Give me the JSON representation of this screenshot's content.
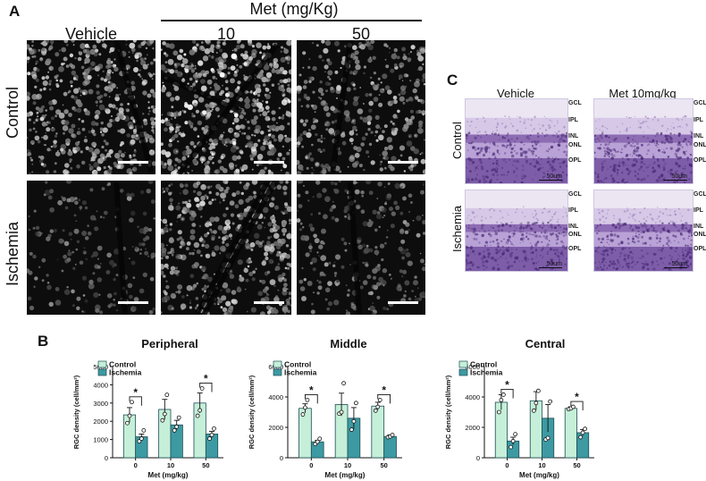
{
  "panel_a": {
    "letter": "A",
    "group_label": "Met (mg/Kg)",
    "columns": [
      "Vehicle",
      "10",
      "50"
    ],
    "rows": [
      "Control",
      "Ischemia"
    ]
  },
  "panel_c": {
    "letter": "C",
    "columns": [
      "Vehicle",
      "Met 10mg/kg"
    ],
    "rows": [
      "Control",
      "Ischemia"
    ],
    "layers": [
      "GCL",
      "IPL",
      "INL",
      "ONL",
      "OPL"
    ],
    "scale_bar": "50um"
  },
  "panel_b": {
    "letter": "B"
  },
  "colors": {
    "control": "#c5efd8",
    "ischemia": "#3d9aa2",
    "bar_edge": "#1d4d55"
  },
  "chart_data": [
    {
      "type": "bar",
      "title": "Peripheral",
      "categories": [
        "0",
        "10",
        "50"
      ],
      "xlabel": "Met (mg/kg)",
      "ylabel": "RGC density (cell/mm²)",
      "ylim": [
        0,
        5000
      ],
      "yticks": [
        "0",
        "1000",
        "2000",
        "3000",
        "4000",
        "5000"
      ],
      "legend": [
        "Control",
        "Ischemia"
      ],
      "legend_position": "top-left",
      "series": [
        {
          "name": "Control",
          "values": [
            2350,
            2650,
            3000
          ],
          "err": [
            400,
            550,
            550
          ],
          "points": [
            [
              1900,
              2300,
              3050
            ],
            [
              2050,
              2400,
              3450
            ],
            [
              2300,
              2600,
              3800
            ]
          ]
        },
        {
          "name": "Ischemia",
          "values": [
            1150,
            1800,
            1300
          ],
          "err": [
            150,
            250,
            150
          ],
          "points": [
            [
              900,
              1050,
              1500
            ],
            [
              1500,
              1700,
              2200
            ],
            [
              1050,
              1250,
              1600
            ]
          ]
        }
      ],
      "significance": [
        {
          "category": "0",
          "label": "*"
        },
        {
          "category": "50",
          "label": "*"
        }
      ]
    },
    {
      "type": "bar",
      "title": "Middle",
      "categories": [
        "0",
        "10",
        "50"
      ],
      "xlabel": "Met (mg/kg)",
      "ylabel": "RGC density (cell/mm²)",
      "ylim": [
        0,
        6000
      ],
      "yticks": [
        "0",
        "2000",
        "4000",
        "6000"
      ],
      "legend": [
        "Control",
        "Ischemia"
      ],
      "legend_position": "top-left",
      "series": [
        {
          "name": "Control",
          "values": [
            3250,
            3500,
            3400
          ],
          "err": [
            300,
            750,
            250
          ],
          "points": [
            [
              2850,
              3300,
              3800
            ],
            [
              2900,
              3000,
              4900
            ],
            [
              3100,
              3350,
              3800
            ]
          ]
        },
        {
          "name": "Ischemia",
          "values": [
            1050,
            2600,
            1400
          ],
          "err": [
            100,
            700,
            100
          ],
          "points": [
            [
              900,
              1050,
              1250
            ],
            [
              1850,
              2400,
              3600
            ],
            [
              1350,
              1400,
              1500
            ]
          ]
        }
      ],
      "significance": [
        {
          "category": "0",
          "label": "*"
        },
        {
          "category": "50",
          "label": "*"
        }
      ]
    },
    {
      "type": "bar",
      "title": "Central",
      "categories": [
        "0",
        "10",
        "50"
      ],
      "xlabel": "Met (mg/kg)",
      "ylabel": "RGC density (cell/mm²)",
      "ylim": [
        0,
        6000
      ],
      "yticks": [
        "0",
        "2000",
        "4000",
        "6000"
      ],
      "legend": [
        "Control",
        "Ischemia"
      ],
      "legend_position": "top-left",
      "series": [
        {
          "name": "Control",
          "values": [
            3650,
            3750,
            3250
          ],
          "err": [
            500,
            600,
            100
          ],
          "points": [
            [
              3000,
              3800,
              4150
            ],
            [
              3100,
              3600,
              4400
            ],
            [
              3200,
              3250,
              3350
            ]
          ]
        },
        {
          "name": "Ischemia",
          "values": [
            1100,
            2600,
            1650
          ],
          "err": [
            250,
            900,
            200
          ],
          "points": [
            [
              700,
              1100,
              1550
            ],
            [
              1200,
              1300,
              3700
            ],
            [
              1350,
              1650,
              1900
            ]
          ]
        }
      ],
      "significance": [
        {
          "category": "0",
          "label": "*"
        },
        {
          "category": "50",
          "label": "*"
        }
      ]
    }
  ]
}
